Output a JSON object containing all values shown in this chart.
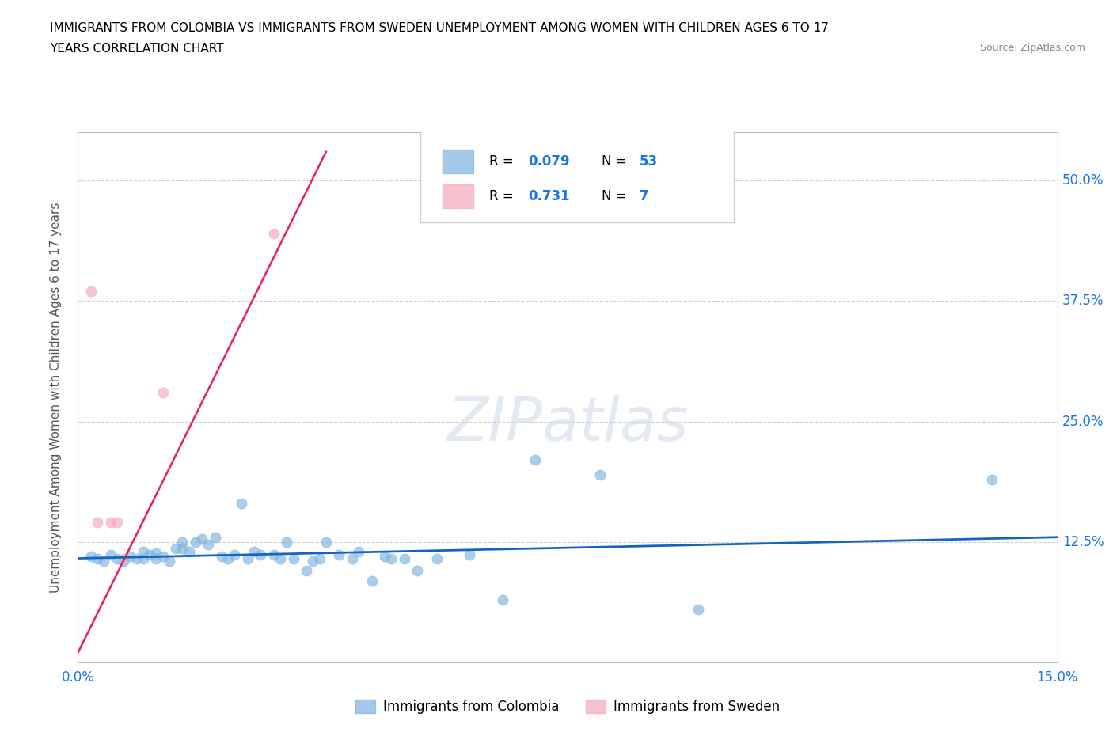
{
  "title_line1": "IMMIGRANTS FROM COLOMBIA VS IMMIGRANTS FROM SWEDEN UNEMPLOYMENT AMONG WOMEN WITH CHILDREN AGES 6 TO 17",
  "title_line2": "YEARS CORRELATION CHART",
  "source_text": "Source: ZipAtlas.com",
  "ylabel": "Unemployment Among Women with Children Ages 6 to 17 years",
  "xlim": [
    0.0,
    0.15
  ],
  "ylim": [
    0.0,
    0.55
  ],
  "xticks": [
    0.0,
    0.05,
    0.1,
    0.15
  ],
  "xtick_labels": [
    "0.0%",
    "",
    "",
    "15.0%"
  ],
  "ytick_positions": [
    0.0,
    0.125,
    0.25,
    0.375,
    0.5
  ],
  "ytick_labels": [
    "",
    "12.5%",
    "25.0%",
    "37.5%",
    "50.0%"
  ],
  "watermark": "ZIPatlas",
  "colombia_color": "#7eb3e0",
  "sweden_color": "#f4a7b9",
  "colombia_R": 0.079,
  "colombia_N": 53,
  "sweden_R": 0.731,
  "sweden_N": 7,
  "colombia_scatter_x": [
    0.002,
    0.003,
    0.004,
    0.005,
    0.006,
    0.007,
    0.008,
    0.009,
    0.01,
    0.01,
    0.011,
    0.012,
    0.012,
    0.013,
    0.014,
    0.015,
    0.016,
    0.016,
    0.017,
    0.018,
    0.019,
    0.02,
    0.021,
    0.022,
    0.023,
    0.024,
    0.025,
    0.026,
    0.027,
    0.028,
    0.03,
    0.031,
    0.032,
    0.033,
    0.035,
    0.036,
    0.037,
    0.038,
    0.04,
    0.042,
    0.043,
    0.045,
    0.047,
    0.048,
    0.05,
    0.052,
    0.055,
    0.06,
    0.065,
    0.07,
    0.08,
    0.095,
    0.14
  ],
  "colombia_scatter_y": [
    0.11,
    0.108,
    0.105,
    0.112,
    0.108,
    0.105,
    0.11,
    0.108,
    0.115,
    0.108,
    0.112,
    0.108,
    0.113,
    0.11,
    0.105,
    0.118,
    0.125,
    0.118,
    0.115,
    0.125,
    0.128,
    0.122,
    0.13,
    0.11,
    0.108,
    0.112,
    0.165,
    0.108,
    0.115,
    0.112,
    0.112,
    0.108,
    0.125,
    0.108,
    0.095,
    0.105,
    0.108,
    0.125,
    0.112,
    0.108,
    0.115,
    0.085,
    0.11,
    0.108,
    0.108,
    0.095,
    0.108,
    0.112,
    0.065,
    0.21,
    0.195,
    0.055,
    0.19
  ],
  "sweden_scatter_x": [
    0.002,
    0.003,
    0.005,
    0.006,
    0.007,
    0.013,
    0.03
  ],
  "sweden_scatter_y": [
    0.385,
    0.145,
    0.145,
    0.145,
    0.108,
    0.28,
    0.445
  ],
  "colombia_trendline_x": [
    0.0,
    0.15
  ],
  "colombia_trendline_y": [
    0.108,
    0.13
  ],
  "sweden_trendline_x": [
    0.0,
    0.038
  ],
  "sweden_trendline_y": [
    0.01,
    0.53
  ],
  "grid_color": "#d0d0d0",
  "grid_style": "dashed",
  "bg_color": "#ffffff",
  "text_color_blue": "#1a73e8",
  "axis_label_color": "#555555",
  "colombia_line_color": "#1565c0",
  "sweden_line_color": "#e91e63"
}
